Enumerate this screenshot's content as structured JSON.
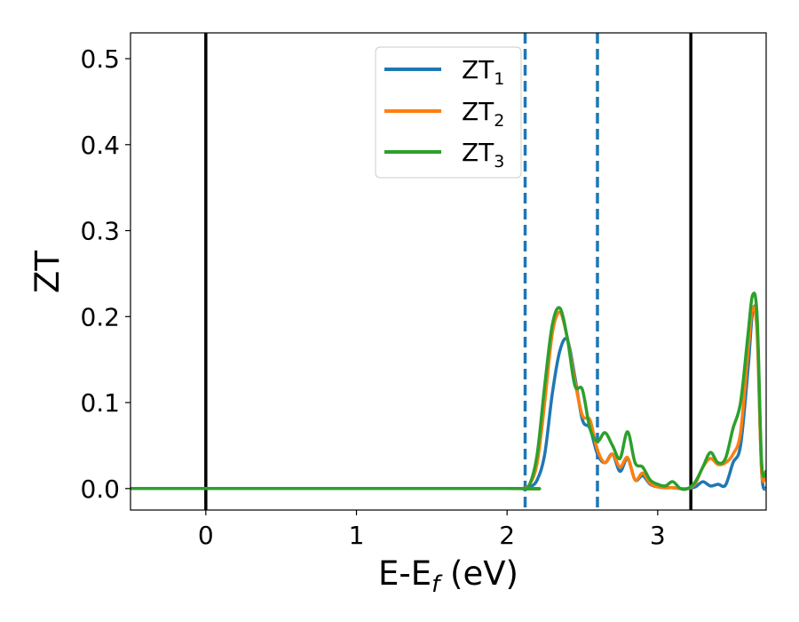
{
  "chart_data": {
    "type": "line",
    "xlabel": {
      "main": "E-E",
      "sub": "f",
      "tail": " (eV)"
    },
    "ylabel": "ZT",
    "xlim": [
      -0.5,
      3.72
    ],
    "ylim": [
      -0.025,
      0.53
    ],
    "xticks": [
      0,
      1,
      2,
      3
    ],
    "yticks": [
      0.0,
      0.1,
      0.2,
      0.3,
      0.4,
      0.5
    ],
    "xtick_labels": [
      "0",
      "1",
      "2",
      "3"
    ],
    "ytick_labels": [
      "0.0",
      "0.1",
      "0.2",
      "0.3",
      "0.4",
      "0.5"
    ],
    "legend_position": "top-center",
    "vlines": [
      {
        "x": 0.0,
        "style": "solid",
        "color": "#000000"
      },
      {
        "x": 3.22,
        "style": "solid",
        "color": "#000000"
      },
      {
        "x": 2.12,
        "style": "dashed",
        "color": "#1f77b4"
      },
      {
        "x": 2.6,
        "style": "dashed",
        "color": "#1f77b4"
      }
    ],
    "series": [
      {
        "name": "ZT",
        "sub": "1",
        "color": "#1f77b4",
        "x": [
          -0.5,
          2.0,
          2.1,
          2.15,
          2.2,
          2.25,
          2.3,
          2.35,
          2.4,
          2.45,
          2.5,
          2.55,
          2.6,
          2.65,
          2.7,
          2.75,
          2.8,
          2.85,
          2.9,
          2.95,
          3.0,
          3.05,
          3.1,
          3.15,
          3.2,
          3.25,
          3.3,
          3.35,
          3.4,
          3.45,
          3.5,
          3.55,
          3.6,
          3.63,
          3.66,
          3.69,
          3.72
        ],
        "y": [
          0.0,
          0.0,
          0.0,
          0.002,
          0.01,
          0.04,
          0.11,
          0.16,
          0.173,
          0.13,
          0.08,
          0.07,
          0.04,
          0.03,
          0.04,
          0.02,
          0.035,
          0.01,
          0.015,
          0.005,
          0.002,
          0.001,
          0.001,
          0.0,
          0.0,
          0.002,
          0.008,
          0.003,
          0.005,
          0.004,
          0.03,
          0.05,
          0.14,
          0.205,
          0.19,
          0.02,
          0.0
        ]
      },
      {
        "name": "ZT",
        "sub": "2",
        "color": "#ff7f0e",
        "x": [
          -0.5,
          2.0,
          2.1,
          2.15,
          2.2,
          2.25,
          2.3,
          2.35,
          2.4,
          2.45,
          2.5,
          2.55,
          2.6,
          2.65,
          2.7,
          2.75,
          2.8,
          2.85,
          2.9,
          2.95,
          3.0,
          3.05,
          3.1,
          3.15,
          3.2,
          3.25,
          3.3,
          3.35,
          3.4,
          3.45,
          3.5,
          3.55,
          3.6,
          3.63,
          3.66,
          3.69,
          3.72
        ],
        "y": [
          0.0,
          0.0,
          0.0,
          0.005,
          0.03,
          0.1,
          0.18,
          0.205,
          0.175,
          0.125,
          0.085,
          0.08,
          0.045,
          0.03,
          0.04,
          0.025,
          0.036,
          0.01,
          0.018,
          0.006,
          0.002,
          0.001,
          0.001,
          0.0,
          0.0,
          0.006,
          0.025,
          0.035,
          0.028,
          0.03,
          0.04,
          0.065,
          0.16,
          0.21,
          0.18,
          0.02,
          0.02
        ]
      },
      {
        "name": "ZT",
        "sub": "3",
        "color": "#2ca02c",
        "x": [
          -0.5,
          2.0,
          2.1,
          2.15,
          2.2,
          2.25,
          2.3,
          2.35,
          2.4,
          2.45,
          2.5,
          2.55,
          2.6,
          2.65,
          2.7,
          2.75,
          2.8,
          2.85,
          2.9,
          2.95,
          3.0,
          3.05,
          3.1,
          3.15,
          3.2,
          3.25,
          3.3,
          3.35,
          3.4,
          3.45,
          3.5,
          3.55,
          3.6,
          3.63,
          3.66,
          3.69,
          3.72
        ],
        "y": [
          0.0,
          0.0,
          0.0,
          0.005,
          0.04,
          0.12,
          0.19,
          0.21,
          0.175,
          0.12,
          0.115,
          0.07,
          0.055,
          0.065,
          0.05,
          0.035,
          0.066,
          0.03,
          0.025,
          0.01,
          0.005,
          0.003,
          0.008,
          0.0,
          0.0,
          0.008,
          0.025,
          0.042,
          0.03,
          0.035,
          0.07,
          0.1,
          0.18,
          0.225,
          0.2,
          0.03,
          0.02
        ]
      }
    ]
  }
}
